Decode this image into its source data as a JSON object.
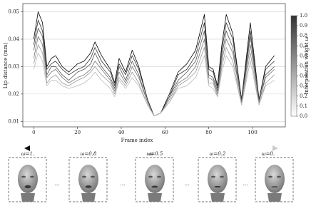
{
  "chart_data": {
    "type": "line",
    "x_label": "Frame index",
    "y_label": "Lip distance (mm)",
    "x": [
      0,
      2,
      4,
      6,
      8,
      10,
      13,
      16,
      20,
      23,
      26,
      28,
      31,
      35,
      37,
      39,
      42,
      45,
      48,
      52,
      55,
      58,
      62,
      66,
      70,
      74,
      78,
      80,
      82,
      84,
      86,
      88,
      91,
      95,
      99,
      103,
      106,
      110
    ],
    "series": [
      {
        "color": "#000000",
        "values": [
          0.04,
          0.05,
          0.046,
          0.03,
          0.033,
          0.034,
          0.03,
          0.028,
          0.031,
          0.032,
          0.035,
          0.039,
          0.034,
          0.029,
          0.024,
          0.033,
          0.028,
          0.036,
          0.03,
          0.018,
          0.012,
          0.013,
          0.02,
          0.028,
          0.031,
          0.036,
          0.049,
          0.03,
          0.029,
          0.023,
          0.038,
          0.049,
          0.042,
          0.018,
          0.046,
          0.018,
          0.03,
          0.034
        ]
      },
      {
        "color": "#333333",
        "values": [
          0.038,
          0.047,
          0.043,
          0.029,
          0.031,
          0.032,
          0.029,
          0.027,
          0.029,
          0.03,
          0.033,
          0.037,
          0.032,
          0.028,
          0.023,
          0.031,
          0.027,
          0.034,
          0.029,
          0.018,
          0.012,
          0.013,
          0.019,
          0.027,
          0.029,
          0.034,
          0.046,
          0.029,
          0.028,
          0.022,
          0.036,
          0.046,
          0.04,
          0.018,
          0.043,
          0.018,
          0.029,
          0.032
        ]
      },
      {
        "color": "#555555",
        "values": [
          0.036,
          0.044,
          0.041,
          0.027,
          0.03,
          0.03,
          0.027,
          0.025,
          0.028,
          0.029,
          0.031,
          0.035,
          0.03,
          0.026,
          0.022,
          0.03,
          0.025,
          0.032,
          0.027,
          0.017,
          0.012,
          0.013,
          0.019,
          0.025,
          0.028,
          0.032,
          0.043,
          0.027,
          0.026,
          0.021,
          0.034,
          0.043,
          0.037,
          0.017,
          0.041,
          0.017,
          0.027,
          0.03
        ]
      },
      {
        "color": "#777777",
        "values": [
          0.033,
          0.041,
          0.038,
          0.026,
          0.028,
          0.029,
          0.026,
          0.024,
          0.026,
          0.027,
          0.029,
          0.032,
          0.029,
          0.025,
          0.021,
          0.028,
          0.024,
          0.03,
          0.026,
          0.017,
          0.012,
          0.013,
          0.018,
          0.024,
          0.026,
          0.03,
          0.04,
          0.026,
          0.025,
          0.02,
          0.032,
          0.04,
          0.035,
          0.017,
          0.038,
          0.017,
          0.026,
          0.029
        ]
      },
      {
        "color": "#999999",
        "values": [
          0.031,
          0.038,
          0.035,
          0.024,
          0.026,
          0.027,
          0.024,
          0.023,
          0.025,
          0.026,
          0.028,
          0.03,
          0.027,
          0.024,
          0.02,
          0.026,
          0.023,
          0.028,
          0.024,
          0.016,
          0.012,
          0.013,
          0.017,
          0.023,
          0.025,
          0.028,
          0.037,
          0.024,
          0.024,
          0.019,
          0.03,
          0.037,
          0.032,
          0.016,
          0.035,
          0.016,
          0.024,
          0.027
        ]
      },
      {
        "color": "#bbbbbb",
        "values": [
          0.029,
          0.035,
          0.032,
          0.023,
          0.025,
          0.025,
          0.023,
          0.022,
          0.023,
          0.024,
          0.026,
          0.028,
          0.025,
          0.022,
          0.019,
          0.025,
          0.022,
          0.026,
          0.023,
          0.016,
          0.012,
          0.013,
          0.017,
          0.022,
          0.023,
          0.026,
          0.034,
          0.023,
          0.022,
          0.019,
          0.028,
          0.034,
          0.03,
          0.016,
          0.032,
          0.016,
          0.023,
          0.025
        ]
      }
    ],
    "xlim": [
      -5,
      115
    ],
    "xticks": [
      0,
      20,
      40,
      60,
      80,
      100
    ],
    "ylim": [
      0.008,
      0.053
    ],
    "yticks": [
      0.01,
      0.02,
      0.03,
      0.04,
      0.05
    ],
    "grid": true,
    "colorbar": {
      "label": "Interpolation weight ω",
      "lim": [
        0,
        1
      ],
      "ticks": [
        {
          "value": 0,
          "label": "0.0"
        },
        {
          "value": 0.1,
          "label": "0.1"
        },
        {
          "value": 0.2,
          "label": "0.2"
        },
        {
          "value": 0.3,
          "label": "0.3"
        },
        {
          "value": 0.4,
          "label": "0.4"
        },
        {
          "value": 0.5,
          "label": "0.5"
        },
        {
          "value": 0.6,
          "label": "0.6"
        },
        {
          "value": 0.7,
          "label": "0.7"
        },
        {
          "value": 0.8,
          "label": "0.8"
        },
        {
          "value": 0.9,
          "label": "0.9"
        },
        {
          "value": 1,
          "label": "1.0"
        }
      ]
    }
  },
  "weight_row": {
    "arrow_label": "ω",
    "labels": [
      "ω=1.",
      "ω=0.8",
      "ω=0.5",
      "ω=0.2",
      "ω=0."
    ],
    "ellipsis": "..."
  }
}
